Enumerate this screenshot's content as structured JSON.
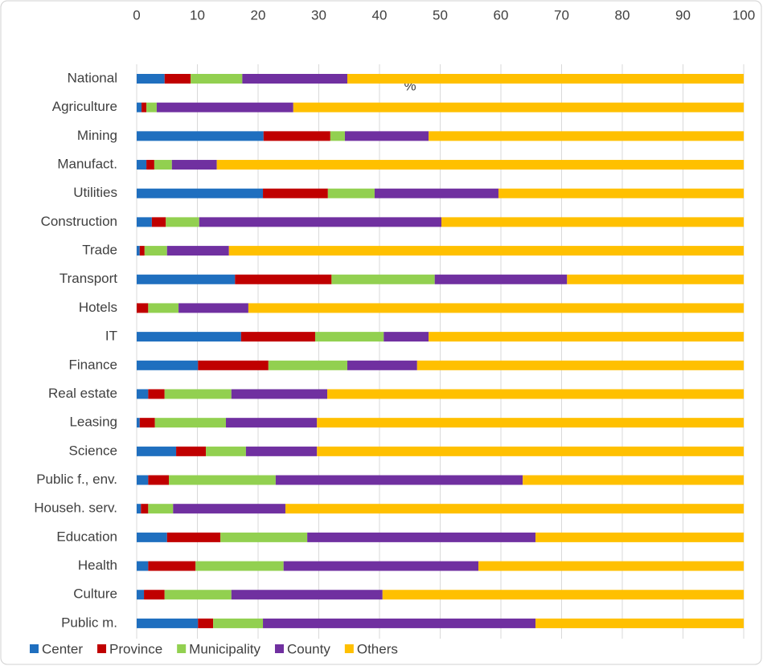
{
  "chart_data": {
    "type": "stacked_bar_horizontal",
    "x_label": "%",
    "categories": [
      "National",
      "Agriculture",
      "Mining",
      "Manufact.",
      "Utilities",
      "Construction",
      "Trade",
      "Transport",
      "Hotels",
      "IT",
      "Finance",
      "Real estate",
      "Leasing",
      "Science",
      "Public f., env.",
      "Househ. serv.",
      "Education",
      "Health",
      "Culture",
      "Public m."
    ],
    "series": [
      {
        "name": "Center",
        "color": "#1f6fbf",
        "values": [
          4.6,
          0.8,
          20.9,
          1.6,
          20.8,
          2.5,
          0.5,
          16.2,
          0,
          17.2,
          10.1,
          1.9,
          0.5,
          6.5,
          1.9,
          0.7,
          5.0,
          1.9,
          1.2,
          10.1
        ]
      },
      {
        "name": "Province",
        "color": "#c00000",
        "values": [
          4.3,
          0.8,
          11.0,
          1.3,
          10.7,
          2.3,
          0.8,
          15.9,
          1.9,
          12.2,
          11.6,
          2.7,
          2.5,
          4.9,
          3.4,
          1.2,
          8.8,
          7.8,
          3.4,
          2.5
        ]
      },
      {
        "name": "Municipality",
        "color": "#92d050",
        "values": [
          8.5,
          1.7,
          2.4,
          2.9,
          7.7,
          5.5,
          3.7,
          17.0,
          5.0,
          11.3,
          13.0,
          11.0,
          11.7,
          6.6,
          17.6,
          4.1,
          14.3,
          14.5,
          11.0,
          8.2
        ]
      },
      {
        "name": "County",
        "color": "#7030a0",
        "values": [
          17.3,
          22.5,
          13.8,
          7.4,
          20.4,
          39.9,
          10.2,
          21.8,
          11.5,
          7.4,
          11.5,
          15.8,
          15.0,
          11.7,
          40.7,
          18.5,
          37.6,
          32.1,
          24.9,
          44.9
        ]
      },
      {
        "name": "Others",
        "color": "#ffc000",
        "values": [
          65.3,
          74.2,
          51.9,
          86.8,
          40.4,
          49.8,
          84.8,
          29.1,
          81.6,
          51.9,
          53.8,
          68.6,
          70.3,
          70.3,
          36.4,
          75.5,
          34.3,
          43.7,
          59.5,
          34.3
        ]
      }
    ],
    "xlim": [
      0,
      100
    ],
    "xticks": [
      0,
      10,
      20,
      30,
      40,
      50,
      60,
      70,
      80,
      90,
      100
    ],
    "grid": true,
    "legend": "bottom"
  }
}
